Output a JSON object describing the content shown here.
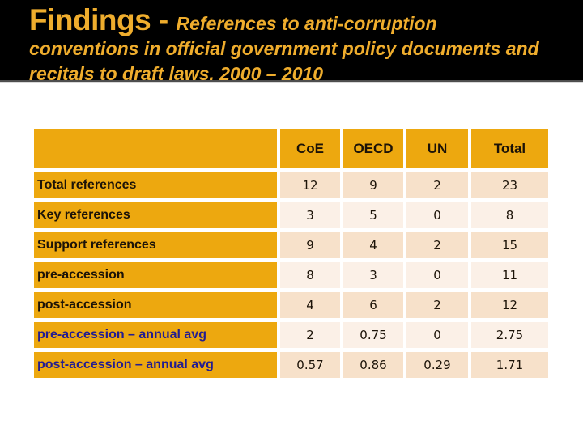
{
  "slide": {
    "title": {
      "prefix": "Findings - ",
      "rest": "References to anti-corruption conventions in official government policy documents and recitals to draft laws, 2000 – 2010"
    },
    "colors": {
      "band_background": "#000000",
      "title_text": "#efad2d",
      "table_orange": "#eda80f",
      "row_peach_dark": "#f7e1ca",
      "row_peach_light": "#fbf0e7",
      "annual_avg_label_navy": "#231d91"
    },
    "table": {
      "columns": [
        "",
        "CoE",
        "OECD",
        "UN",
        "Total"
      ],
      "rows": [
        {
          "label": "Total references",
          "values": [
            "12",
            "9",
            "2",
            "23"
          ]
        },
        {
          "label": "Key references",
          "values": [
            "3",
            "5",
            "0",
            "8"
          ]
        },
        {
          "label": "Support references",
          "values": [
            "9",
            "4",
            "2",
            "15"
          ]
        },
        {
          "label": "pre-accession",
          "values": [
            "8",
            "3",
            "0",
            "11"
          ]
        },
        {
          "label": "post-accession",
          "values": [
            "4",
            "6",
            "2",
            "12"
          ]
        },
        {
          "label": "pre-accession – annual avg",
          "values": [
            "2",
            "0.75",
            "0",
            "2.75"
          ]
        },
        {
          "label": "post-accession – annual avg",
          "values": [
            "0.57",
            "0.86",
            "0.29",
            "1.71"
          ]
        }
      ]
    }
  }
}
